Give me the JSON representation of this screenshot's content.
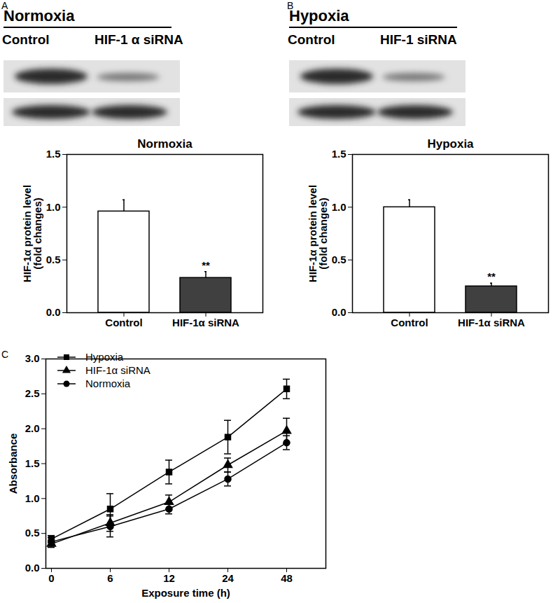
{
  "chart_data": [
    {
      "type": "bar",
      "panel": "A",
      "blot": {
        "title": "Normoxia",
        "labels": [
          "Control",
          "HIF-1 α siRNA"
        ]
      },
      "title": "Normoxia",
      "categories": [
        "Control",
        "HIF-1α siRNA"
      ],
      "values": [
        0.96,
        0.33
      ],
      "errors": [
        0.11,
        0.06
      ],
      "colors": [
        "#ffffff",
        "#404040"
      ],
      "annotations": [
        {
          "category": "HIF-1α siRNA",
          "text": "**"
        }
      ],
      "ylabel": "HIF-1α protein level\n(fold changes)",
      "ylim": [
        0,
        1.5
      ],
      "yticks": [
        {
          "value": 0,
          "label": "0.0"
        },
        {
          "value": 0.5,
          "label": "0.5"
        },
        {
          "value": 1,
          "label": "1.0"
        },
        {
          "value": 1.5,
          "label": "1.5"
        }
      ]
    },
    {
      "type": "bar",
      "panel": "B",
      "blot": {
        "title": "Hypoxia",
        "labels": [
          "Control",
          "HIF-1 siRNA"
        ]
      },
      "title": "Hypoxia",
      "categories": [
        "Control",
        "HIF-1α siRNA"
      ],
      "values": [
        1.0,
        0.25
      ],
      "errors": [
        0.07,
        0.03
      ],
      "colors": [
        "#ffffff",
        "#404040"
      ],
      "annotations": [
        {
          "category": "HIF-1α siRNA",
          "text": "**"
        }
      ],
      "ylabel": "HIF-1α protein level\n(fold changes)",
      "ylim": [
        0,
        1.5
      ],
      "yticks": [
        {
          "value": 0,
          "label": "0.0"
        },
        {
          "value": 0.5,
          "label": "0.5"
        },
        {
          "value": 1,
          "label": "1.0"
        },
        {
          "value": 1.5,
          "label": "1.5"
        }
      ]
    },
    {
      "type": "line",
      "panel": "C",
      "xlabel": "Exposure time (h)",
      "ylabel": "Absorbance",
      "categories": [
        "0",
        "6",
        "12",
        "24",
        "48"
      ],
      "series": [
        {
          "name": "Hypoxia",
          "color": "#000000",
          "marker": "square",
          "values": [
            0.42,
            0.85,
            1.38,
            1.88,
            2.57
          ],
          "errors": [
            0.05,
            0.22,
            0.17,
            0.24,
            0.14
          ]
        },
        {
          "name": "HIF-1α siRNA",
          "color": "#000000",
          "marker": "triangle",
          "values": [
            0.35,
            0.65,
            0.95,
            1.48,
            1.97
          ],
          "errors": [
            0.05,
            0.12,
            0.1,
            0.1,
            0.18
          ]
        },
        {
          "name": "Normoxia",
          "color": "#000000",
          "marker": "circle",
          "values": [
            0.38,
            0.6,
            0.85,
            1.28,
            1.8
          ],
          "errors": [
            0.06,
            0.15,
            0.07,
            0.1,
            0.1
          ]
        }
      ],
      "ylim": [
        0,
        3
      ],
      "yticks": [
        {
          "value": 0,
          "label": "0.0"
        },
        {
          "value": 0.5,
          "label": "0.5"
        },
        {
          "value": 1,
          "label": "1.0"
        },
        {
          "value": 1.5,
          "label": "1.5"
        },
        {
          "value": 2,
          "label": "2.0"
        },
        {
          "value": 2.5,
          "label": "2.5"
        },
        {
          "value": 3,
          "label": "3.0"
        }
      ],
      "legend": "top-left"
    }
  ]
}
